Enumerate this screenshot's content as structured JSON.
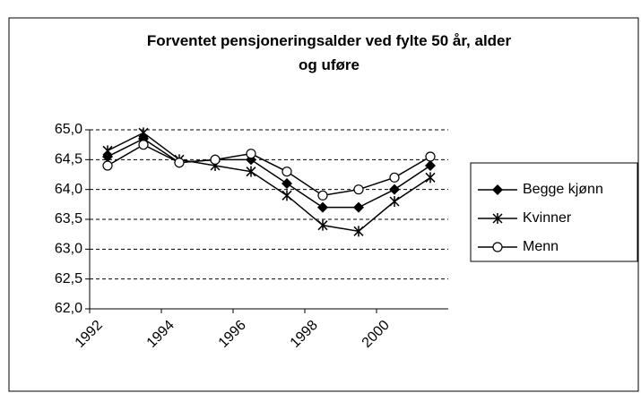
{
  "chart_data": {
    "type": "line",
    "title": "Forventet pensjoneringsalder ved fylte 50 år, alder og uføre",
    "categories": [
      "1992",
      null,
      "1994",
      null,
      "1996",
      null,
      "1998",
      null,
      "2000",
      null
    ],
    "series": [
      {
        "name": "Begge kjønn",
        "color": "#000000",
        "marker": "diamond",
        "values": [
          64.55,
          64.85,
          64.45,
          64.5,
          64.5,
          64.1,
          63.7,
          63.7,
          64.0,
          64.4
        ]
      },
      {
        "name": "Kvinner",
        "color": "#000000",
        "marker": "star",
        "values": [
          64.65,
          64.95,
          64.5,
          64.4,
          64.3,
          63.9,
          63.4,
          63.3,
          63.8,
          64.2
        ]
      },
      {
        "name": "Menn",
        "color": "#000000",
        "marker": "circle",
        "values": [
          64.4,
          64.75,
          64.45,
          64.5,
          64.6,
          64.3,
          63.9,
          64.0,
          64.2,
          64.55
        ]
      }
    ],
    "ylim": [
      62,
      65
    ],
    "yticks": [
      {
        "value": 62,
        "label": "62,0"
      },
      {
        "value": 62.5,
        "label": "62,5"
      },
      {
        "value": 63,
        "label": "63,0"
      },
      {
        "value": 63.5,
        "label": "63,5"
      },
      {
        "value": 64,
        "label": "64,0"
      },
      {
        "value": 64.5,
        "label": "64,5"
      },
      {
        "value": 65,
        "label": "65,0"
      }
    ],
    "grid": true,
    "legend": "right"
  }
}
